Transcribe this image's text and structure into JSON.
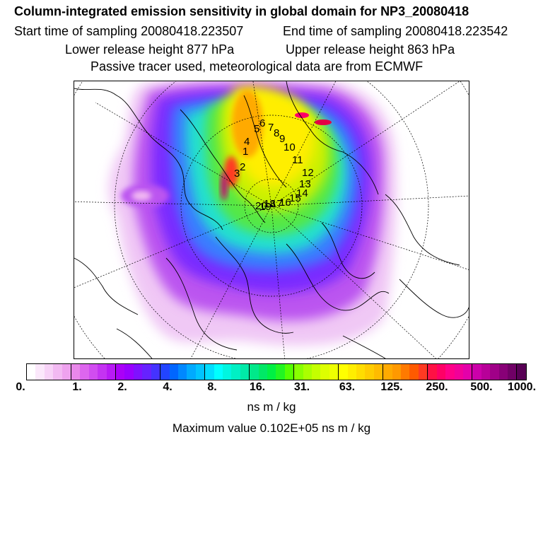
{
  "title": "Column-integrated emission sensitivity in global domain for NP3_20080418",
  "sampling": {
    "start": "Start time of sampling 20080418.223507",
    "end": "End time of sampling 20080418.223542"
  },
  "release": {
    "lower": "Lower release height  877 hPa",
    "upper": "Upper release height  863 hPa"
  },
  "tracer_note": "Passive tracer used, meteorological data are from ECMWF",
  "map": {
    "projection": "polar stereographic (north)",
    "trajectory_labels": [
      "1",
      "2",
      "3",
      "4",
      "5",
      "6",
      "7",
      "8",
      "9",
      "10",
      "11",
      "12",
      "13",
      "14",
      "15",
      "16",
      "17",
      "18",
      "19",
      "20"
    ]
  },
  "colorbar": {
    "tick_labels": [
      "0.",
      "1.",
      "2.",
      "4.",
      "8.",
      "16.",
      "31.",
      "63.",
      "125.",
      "250.",
      "500.",
      "1000."
    ],
    "colors": [
      "#ffffff",
      "#fbe8fb",
      "#f7d2f7",
      "#f2b9f2",
      "#eea2ee",
      "#e988ea",
      "#dd66ee",
      "#d14df0",
      "#c433f2",
      "#b81af5",
      "#aa00f8",
      "#9900ff",
      "#7f11ff",
      "#6622ff",
      "#4433ff",
      "#2244ff",
      "#0066ff",
      "#0088ff",
      "#00aaff",
      "#00c4ff",
      "#00ddff",
      "#00ffff",
      "#00f5e0",
      "#00f0c4",
      "#00eaa8",
      "#00e88a",
      "#00e866",
      "#00f044",
      "#22f522",
      "#55ff00",
      "#88ff00",
      "#aaff00",
      "#c4ff00",
      "#ddff00",
      "#eeff00",
      "#ffff00",
      "#ffee00",
      "#ffdd00",
      "#ffcc00",
      "#ffbb00",
      "#ffaa00",
      "#ff9900",
      "#ff7a00",
      "#ff5a00",
      "#ff3a22",
      "#ff1144",
      "#ff0066",
      "#ff0088",
      "#f20099",
      "#e400aa",
      "#cc00aa",
      "#b80099",
      "#a00088",
      "#880077",
      "#700066",
      "#580055"
    ]
  },
  "units": "ns m / kg",
  "max_value": "Maximum value  0.102E+05 ns m / kg"
}
